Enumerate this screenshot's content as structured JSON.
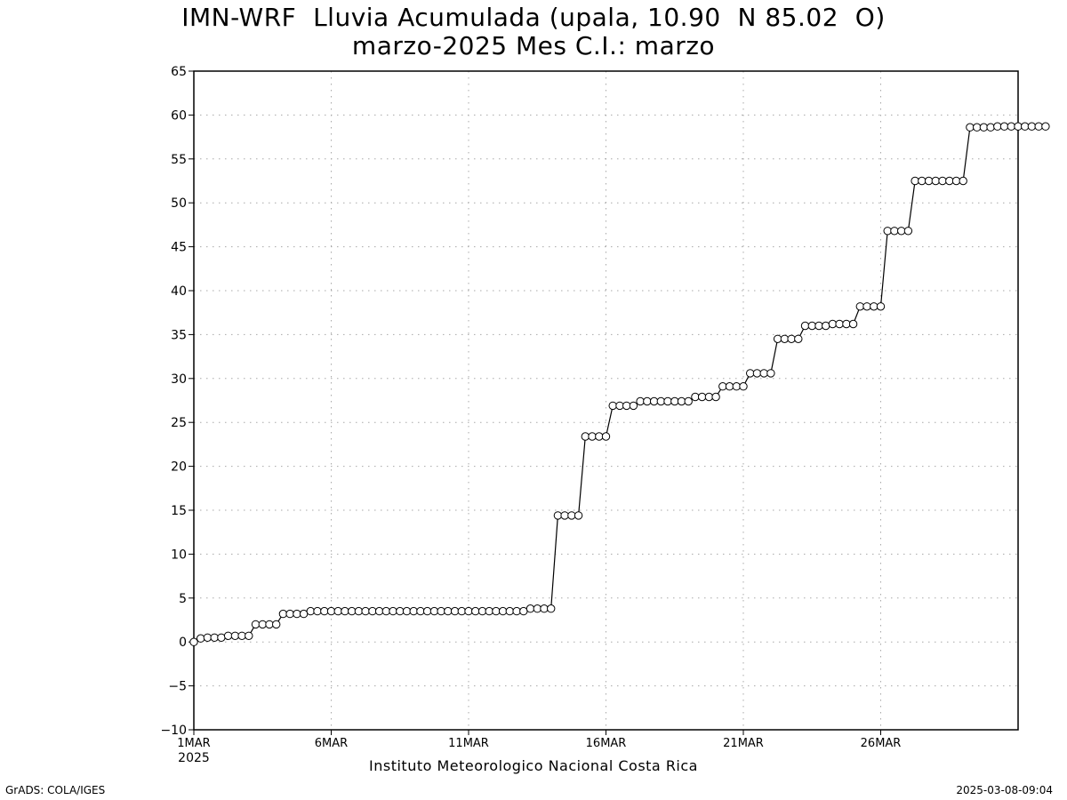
{
  "chart_data": {
    "type": "line",
    "title": "IMN-WRF  Lluvia Acumulada (upala, 10.90  N 85.02  O)",
    "subtitle": "marzo-2025 Mes C.I.: marzo",
    "xlabel": "Instituto Meteorologico Nacional Costa Rica",
    "ylabel": "",
    "x_start_label": "1MAR 2025",
    "x_end_label": "31MAR 2025",
    "x_step_label": "6 hours",
    "x_ticks": [
      {
        "label": "1MAR",
        "sublabel": "2025",
        "x": "1MAR 2025"
      },
      {
        "label": "6MAR",
        "sublabel": "",
        "x": "6MAR 2025"
      },
      {
        "label": "11MAR",
        "sublabel": "",
        "x": "11MAR 2025"
      },
      {
        "label": "16MAR",
        "sublabel": "",
        "x": "16MAR 2025"
      },
      {
        "label": "21MAR",
        "sublabel": "",
        "x": "21MAR 2025"
      },
      {
        "label": "26MAR",
        "sublabel": "",
        "x": "26MAR 2025"
      }
    ],
    "y_ticks": [
      -10,
      -5,
      0,
      5,
      10,
      15,
      20,
      25,
      30,
      35,
      40,
      45,
      50,
      55,
      60,
      65
    ],
    "ylim": [
      -10,
      65
    ],
    "grid": true,
    "marker": "open-circle",
    "series": [
      {
        "name": "",
        "values": [
          0.0,
          0.4,
          0.5,
          0.5,
          0.5,
          0.7,
          0.7,
          0.7,
          0.7,
          2.0,
          2.0,
          2.0,
          2.0,
          3.2,
          3.2,
          3.2,
          3.2,
          3.5,
          3.5,
          3.5,
          3.5,
          3.5,
          3.5,
          3.5,
          3.5,
          3.5,
          3.5,
          3.5,
          3.5,
          3.5,
          3.5,
          3.5,
          3.5,
          3.5,
          3.5,
          3.5,
          3.5,
          3.5,
          3.5,
          3.5,
          3.5,
          3.5,
          3.5,
          3.5,
          3.5,
          3.5,
          3.5,
          3.5,
          3.5,
          3.8,
          3.8,
          3.8,
          3.8,
          14.4,
          14.4,
          14.4,
          14.4,
          23.4,
          23.4,
          23.4,
          23.4,
          26.9,
          26.9,
          26.9,
          26.9,
          27.4,
          27.4,
          27.4,
          27.4,
          27.4,
          27.4,
          27.4,
          27.4,
          27.9,
          27.9,
          27.9,
          27.9,
          29.1,
          29.1,
          29.1,
          29.1,
          30.6,
          30.6,
          30.6,
          30.6,
          34.5,
          34.5,
          34.5,
          34.5,
          36.0,
          36.0,
          36.0,
          36.0,
          36.2,
          36.2,
          36.2,
          36.2,
          38.2,
          38.2,
          38.2,
          38.2,
          46.8,
          46.8,
          46.8,
          46.8,
          52.5,
          52.5,
          52.5,
          52.5,
          52.5,
          52.5,
          52.5,
          52.5,
          58.6,
          58.6,
          58.6,
          58.6,
          58.7,
          58.7,
          58.7,
          58.7,
          58.7,
          58.7,
          58.7,
          58.7
        ]
      }
    ]
  },
  "footer": {
    "left": "GrADS: COLA/IGES",
    "right": "2025-03-08-09:04"
  }
}
